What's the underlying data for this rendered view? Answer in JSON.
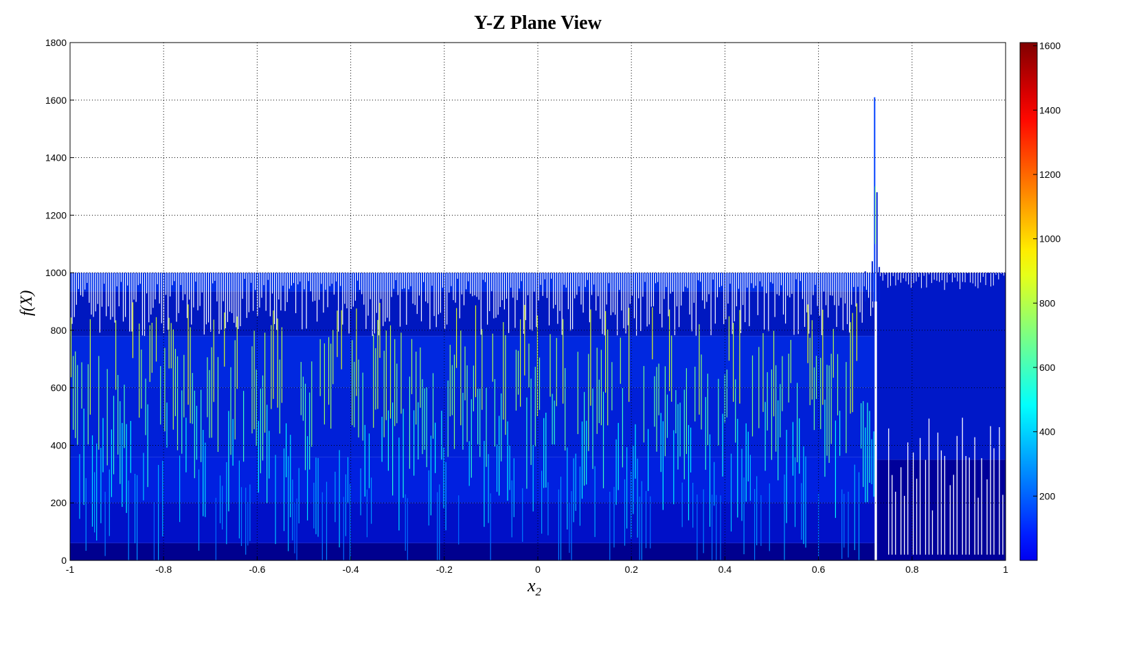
{
  "chart_data": {
    "type": "surface-projection",
    "title": "Y-Z Plane View",
    "xlabel": "x",
    "xlabel_subscript": "2",
    "ylabel": "f(X)",
    "xlim": [
      -1,
      1
    ],
    "ylim": [
      0,
      1800
    ],
    "xticks": [
      "-1",
      "-0.8",
      "-0.6",
      "-0.4",
      "-0.2",
      "0",
      "0.2",
      "0.4",
      "0.6",
      "0.8",
      "1"
    ],
    "yticks": [
      "0",
      "200",
      "400",
      "600",
      "800",
      "1000",
      "1200",
      "1400",
      "1600",
      "1800"
    ],
    "grid": true,
    "colormap": "jet",
    "colorbar": {
      "position": "right",
      "clim": [
        0,
        1610
      ],
      "ticks": [
        "200",
        "400",
        "600",
        "800",
        "1000",
        "1200",
        "1400",
        "1600"
      ]
    },
    "envelope": {
      "x": [
        -1,
        -0.5,
        0,
        0.5,
        0.7,
        0.715,
        0.72,
        0.725,
        0.73,
        0.75,
        1
      ],
      "max_f": [
        1000,
        1000,
        1000,
        1000,
        1005,
        1040,
        1610,
        1280,
        1020,
        1005,
        1000
      ]
    },
    "peak": {
      "x": 0.72,
      "f": 1610
    },
    "colors": {
      "low": "#00008f",
      "mid": "#0040ff",
      "high": "#ffff00",
      "max": "#800000"
    }
  }
}
